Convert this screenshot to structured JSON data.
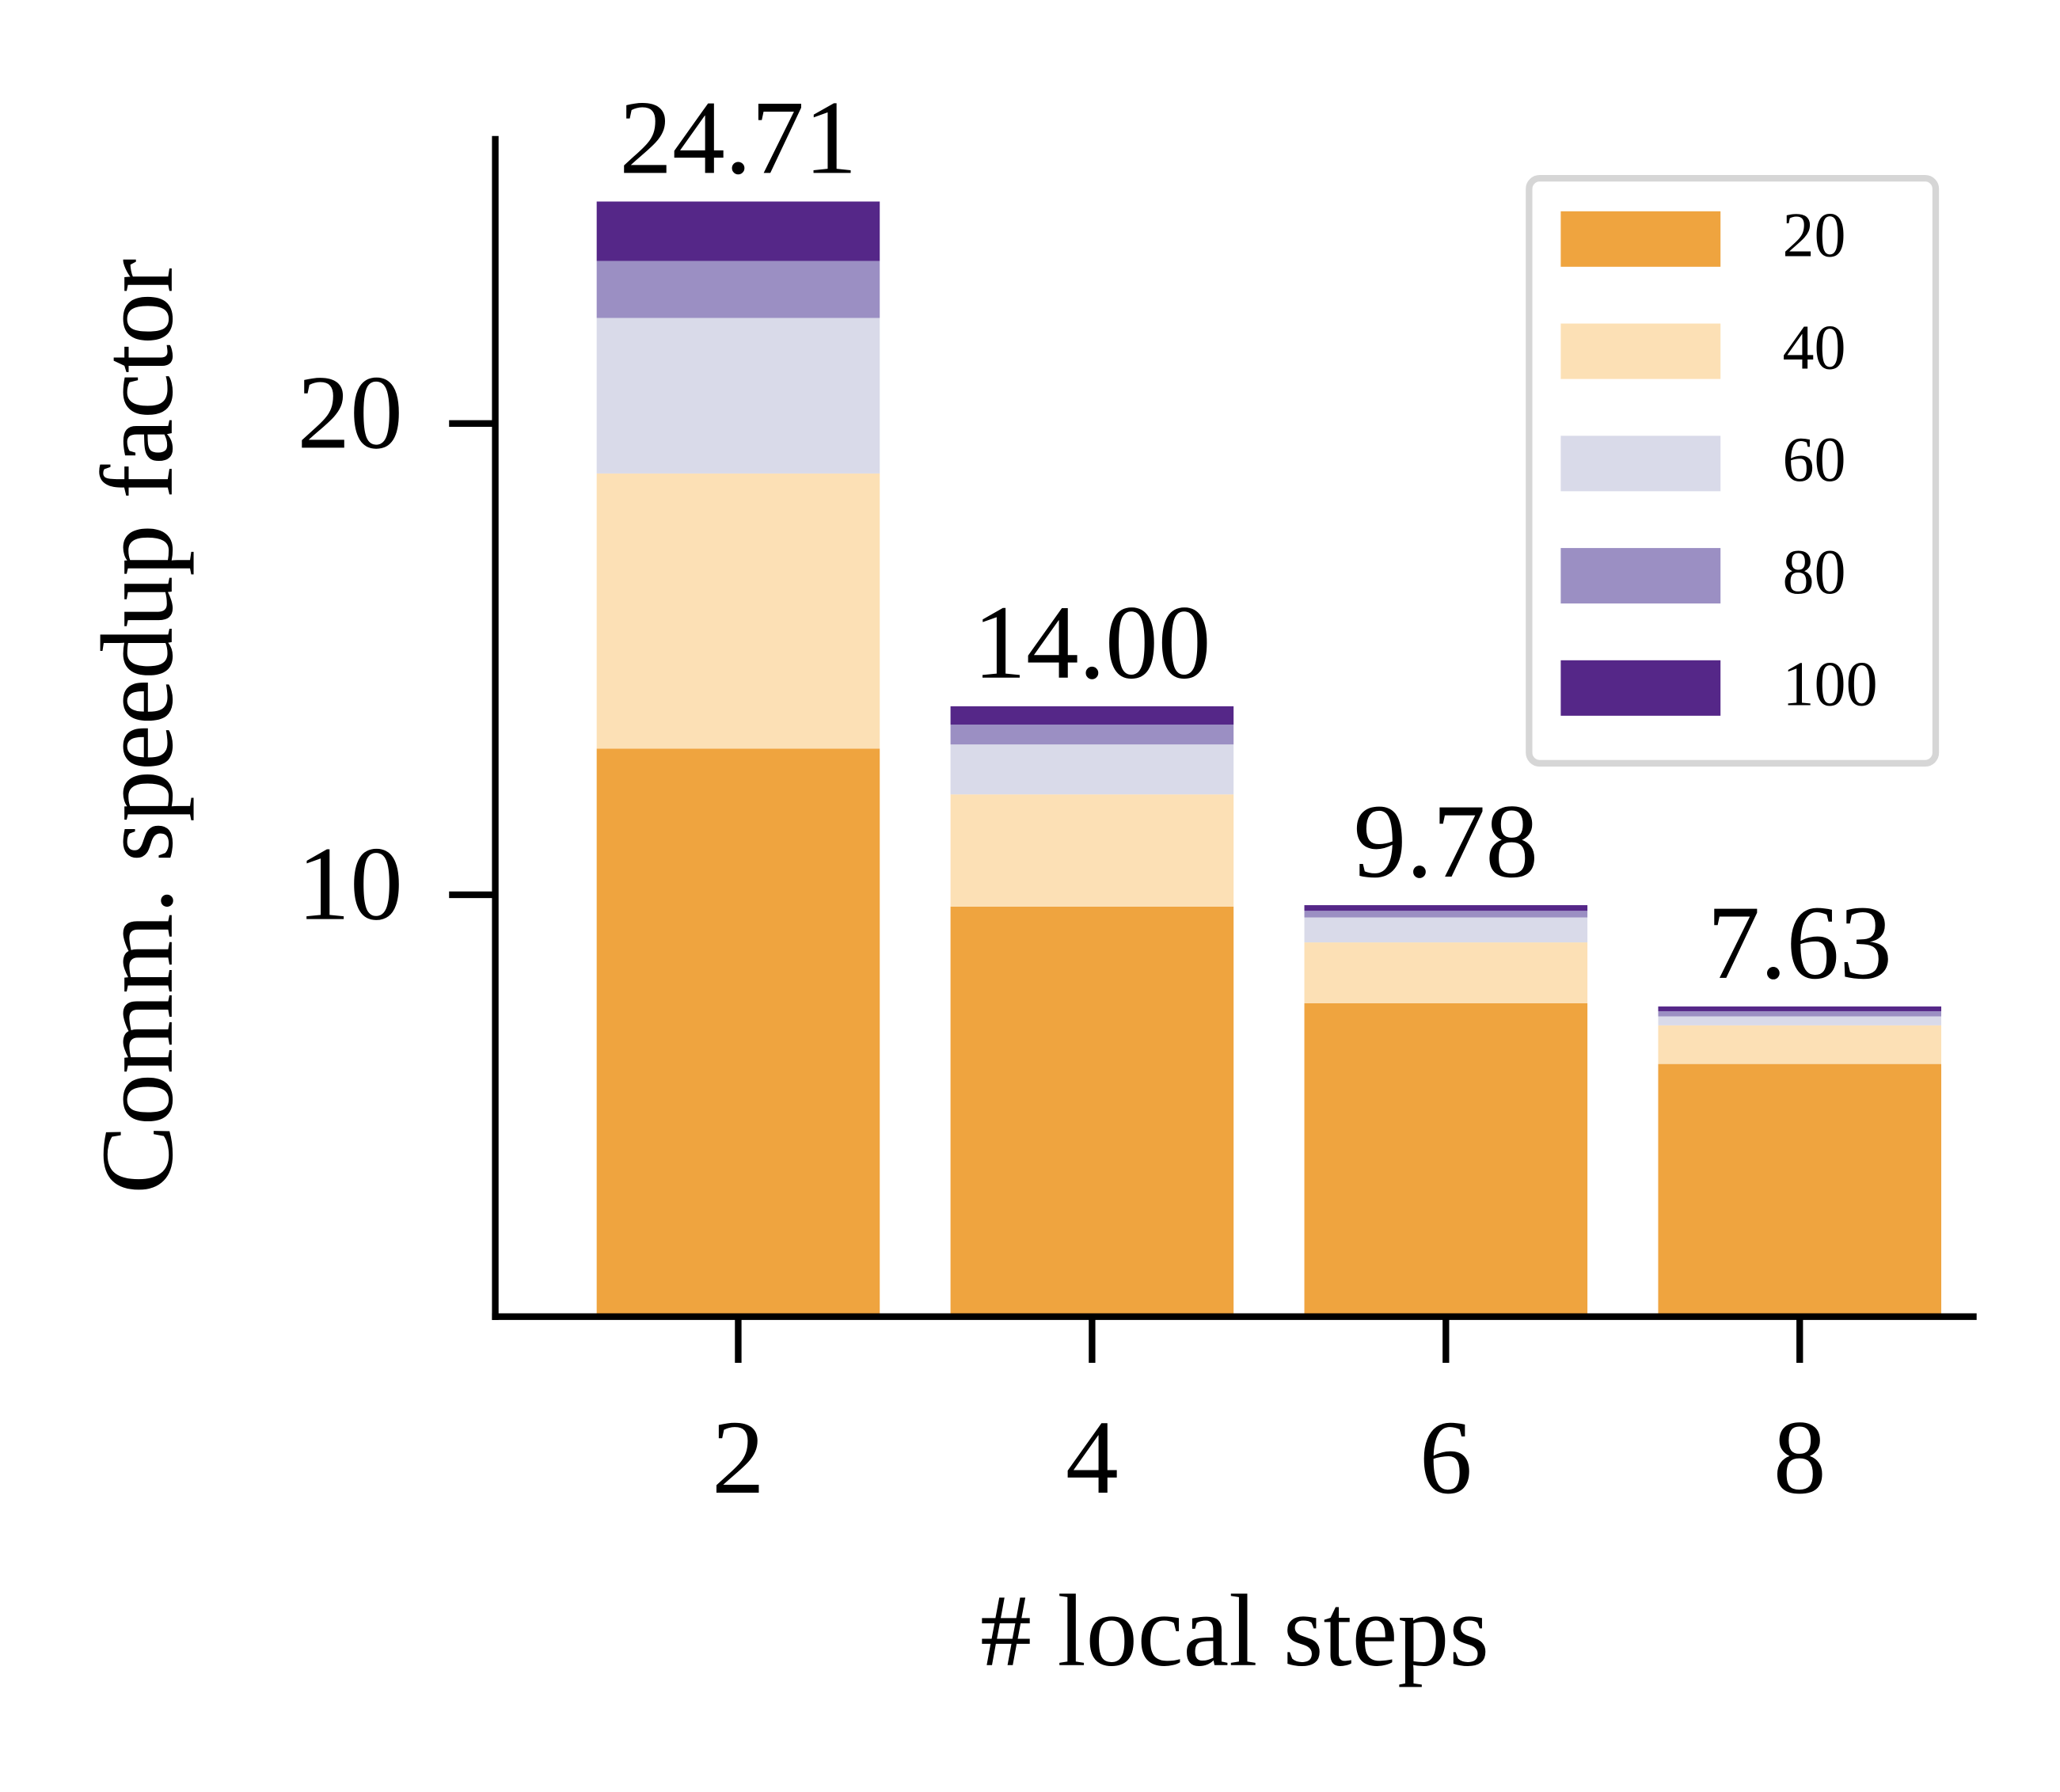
{
  "chart_data": {
    "type": "stacked_bar",
    "x_label": "# local steps",
    "y_label": "Comm. speedup factor",
    "categories": [
      "2",
      "4",
      "6",
      "8"
    ],
    "series": [
      {
        "name": "20",
        "color": "#efa43f",
        "values": [
          13.1,
          9.75,
          7.7,
          6.41
        ]
      },
      {
        "name": "40",
        "color": "#fce0b5",
        "values": [
          5.84,
          2.38,
          1.29,
          0.82
        ]
      },
      {
        "name": "60",
        "color": "#d9dae9",
        "values": [
          3.3,
          1.06,
          0.53,
          0.19
        ]
      },
      {
        "name": "80",
        "color": "#9b8fc3",
        "values": [
          1.21,
          0.42,
          0.14,
          0.11
        ]
      },
      {
        "name": "100",
        "color": "#552788",
        "values": [
          1.26,
          0.39,
          0.12,
          0.1
        ]
      }
    ],
    "totals": [
      24.71,
      14.0,
      9.78,
      7.63
    ],
    "value_labels": [
      "24.71",
      "14.00",
      "9.78",
      "7.63"
    ],
    "ylim": [
      1.05,
      26.1
    ],
    "yticks": [
      10,
      20
    ],
    "legend": "upper right"
  }
}
